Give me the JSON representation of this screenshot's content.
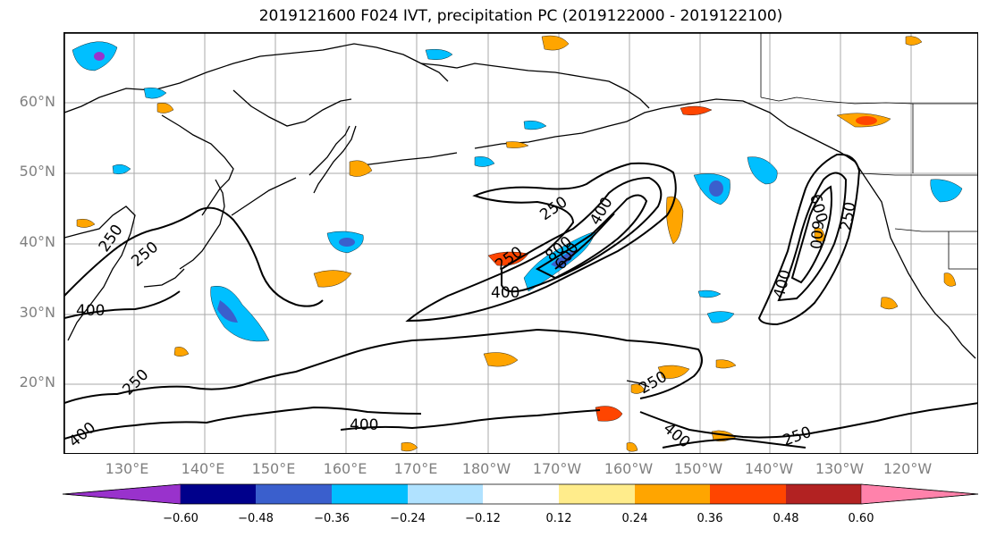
{
  "title": "2019121600 F024 IVT, precipitation PC (2019122000 - 2019122100)",
  "lat_labels": [
    "60°N",
    "50°N",
    "40°N",
    "30°N",
    "20°N"
  ],
  "lon_labels": [
    "130°E",
    "140°E",
    "150°E",
    "160°E",
    "170°E",
    "180°W",
    "170°W",
    "160°W",
    "150°W",
    "140°W",
    "130°W",
    "120°W"
  ],
  "contour_labels": [
    "250",
    "250",
    "400",
    "250",
    "250",
    "400",
    "400",
    "400",
    "250",
    "600",
    "250",
    "400",
    "600",
    "250",
    "400",
    "250",
    "400",
    "800",
    "600"
  ],
  "colorbar": {
    "ticks": [
      "−0.60",
      "−0.48",
      "−0.36",
      "−0.24",
      "−0.12",
      "0.12",
      "0.24",
      "0.36",
      "0.48",
      "0.60"
    ],
    "colors": [
      "#9932cc",
      "#00008b",
      "#3a5fcd",
      "#00bfff",
      "#b0e2ff",
      "#ffffff",
      "#ffec8b",
      "#ffa500",
      "#ff4500",
      "#b22222",
      "#ff82ab"
    ]
  },
  "shading_colors": {
    "light_blue": "#b0e2ff",
    "cyan": "#00bfff",
    "blue": "#3a5fcd",
    "purple": "#9932cc",
    "yellow": "#ffec8b",
    "orange": "#ffa500",
    "red": "#ff4500"
  }
}
